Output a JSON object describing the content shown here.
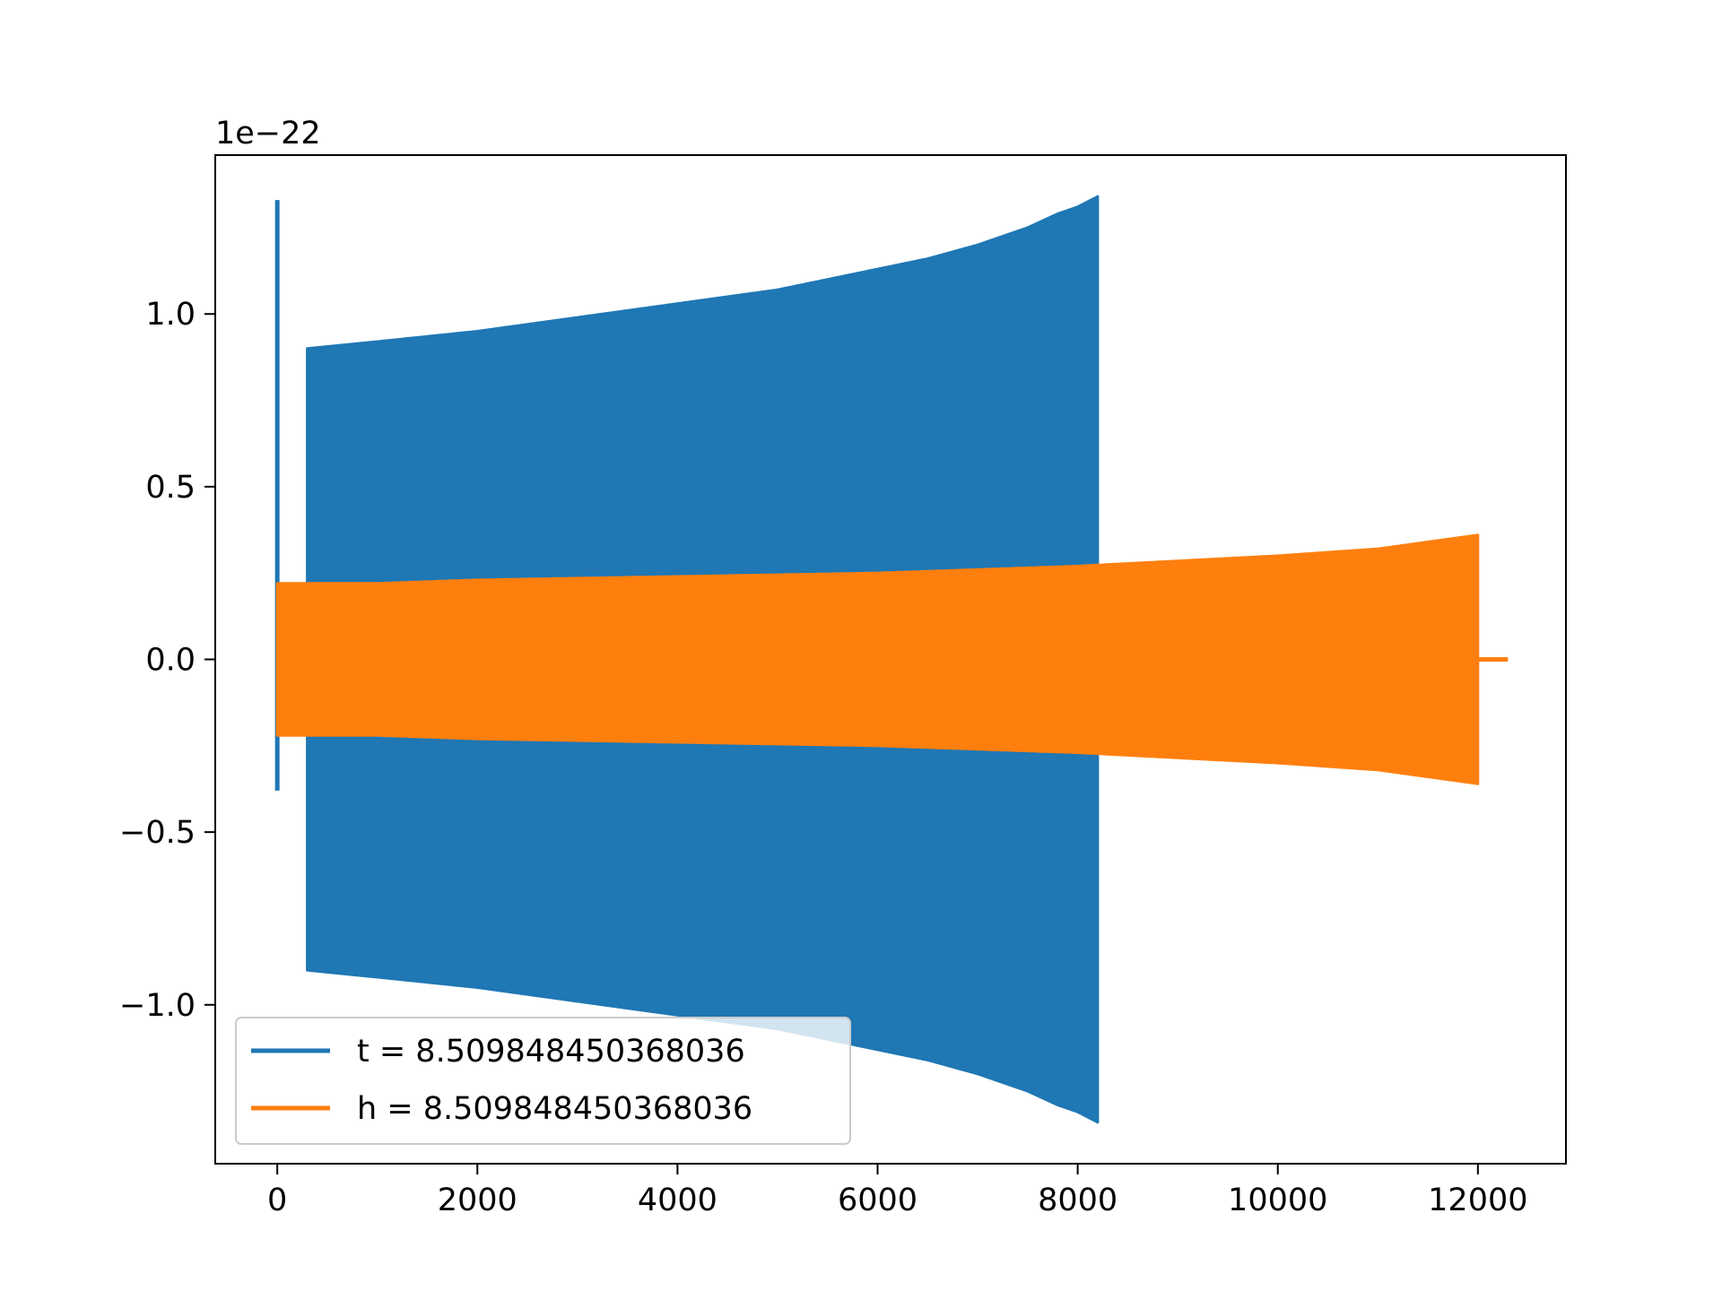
{
  "chart_data": {
    "type": "line",
    "title": "",
    "xlabel": "",
    "ylabel": "",
    "xlim": [
      -620,
      12880
    ],
    "ylim": [
      -1.46,
      1.46
    ],
    "y_offset_label": "1e−22",
    "x_ticks": [
      0,
      2000,
      4000,
      6000,
      8000,
      10000,
      12000
    ],
    "x_tick_labels": [
      "0",
      "2000",
      "4000",
      "6000",
      "8000",
      "10000",
      "12000"
    ],
    "y_ticks": [
      -1.0,
      -0.5,
      0.0,
      0.5,
      1.0
    ],
    "y_tick_labels": [
      "−1.0",
      "−0.5",
      "0.0",
      "0.5",
      "1.0"
    ],
    "grid": false,
    "legend_position": "lower-left",
    "series": [
      {
        "name": "t = 8.509848450368036",
        "color": "#1f77b4",
        "spike": {
          "x": 0,
          "upper": 1.33,
          "lower": -0.38
        },
        "envelope": {
          "x": [
            300,
            1000,
            2000,
            3000,
            4000,
            5000,
            6000,
            6500,
            7000,
            7500,
            7800,
            8000,
            8200
          ],
          "upper": [
            0.9,
            0.92,
            0.95,
            0.99,
            1.03,
            1.07,
            1.13,
            1.16,
            1.2,
            1.25,
            1.29,
            1.31,
            1.34
          ],
          "lower": [
            -0.9,
            -0.92,
            -0.95,
            -0.99,
            -1.03,
            -1.07,
            -1.13,
            -1.16,
            -1.2,
            -1.25,
            -1.29,
            -1.31,
            -1.34
          ]
        }
      },
      {
        "name": "h = 8.509848450368036",
        "color": "#ff7f0e",
        "envelope": {
          "x": [
            0,
            1000,
            2000,
            4000,
            6000,
            8000,
            10000,
            11000,
            11500,
            12000
          ],
          "upper": [
            0.22,
            0.22,
            0.23,
            0.24,
            0.25,
            0.27,
            0.3,
            0.32,
            0.34,
            0.36
          ],
          "lower": [
            -0.22,
            -0.22,
            -0.23,
            -0.24,
            -0.25,
            -0.27,
            -0.3,
            -0.32,
            -0.34,
            -0.36
          ]
        },
        "tail": {
          "x": [
            12000,
            12300
          ],
          "y": 0.0
        }
      }
    ]
  }
}
